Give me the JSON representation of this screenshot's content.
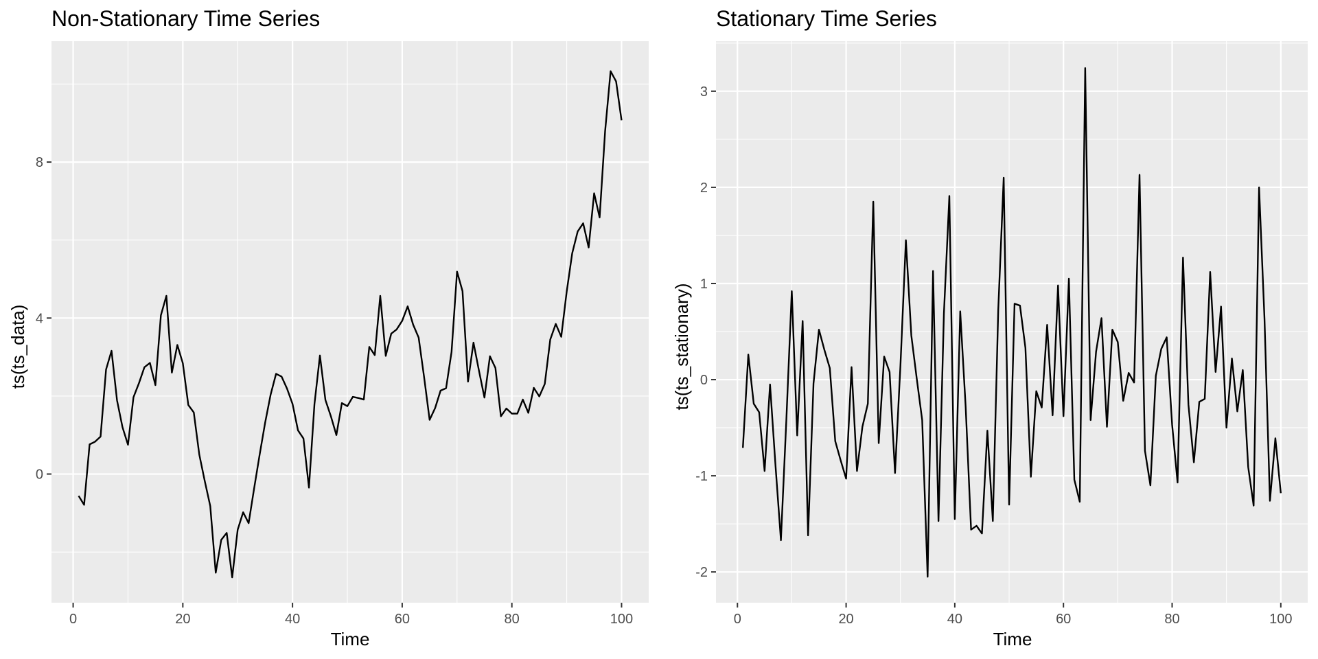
{
  "chart_data": [
    {
      "type": "line",
      "title": "Non-Stationary Time Series",
      "xlabel": "Time",
      "ylabel": "ts(ts_data)",
      "xlim": [
        -3.95,
        104.95
      ],
      "ylim": [
        -3.3,
        11.1
      ],
      "xticks": [
        0,
        20,
        40,
        60,
        80,
        100
      ],
      "xtick_labels": [
        "0",
        "20",
        "40",
        "60",
        "80",
        "100"
      ],
      "yticks": [
        0,
        4,
        8
      ],
      "ytick_labels": [
        "0",
        "4",
        "8"
      ],
      "grid": true,
      "x": [
        1,
        2,
        3,
        4,
        5,
        6,
        7,
        8,
        9,
        10,
        11,
        12,
        13,
        14,
        15,
        16,
        17,
        18,
        19,
        20,
        21,
        22,
        23,
        24,
        25,
        26,
        27,
        28,
        29,
        30,
        31,
        32,
        33,
        34,
        35,
        36,
        37,
        38,
        39,
        40,
        41,
        42,
        43,
        44,
        45,
        46,
        47,
        48,
        49,
        50,
        51,
        52,
        53,
        54,
        55,
        56,
        57,
        58,
        59,
        60,
        61,
        62,
        63,
        64,
        65,
        66,
        67,
        68,
        69,
        70,
        71,
        72,
        73,
        74,
        75,
        76,
        77,
        78,
        79,
        80,
        81,
        82,
        83,
        84,
        85,
        86,
        87,
        88,
        89,
        90,
        91,
        92,
        93,
        94,
        95,
        96,
        97,
        98,
        99,
        100
      ],
      "series": [
        {
          "values": [
            -0.56,
            -0.79,
            0.76,
            0.83,
            0.96,
            2.68,
            3.16,
            1.89,
            1.2,
            0.75,
            1.97,
            2.33,
            2.74,
            2.85,
            2.28,
            4.07,
            4.57,
            2.6,
            3.31,
            2.84,
            1.77,
            1.58,
            0.5,
            -0.18,
            -0.82,
            -2.53,
            -1.69,
            -1.51,
            -2.65,
            -1.43,
            -0.98,
            -1.26,
            -0.37,
            0.49,
            1.31,
            2.03,
            2.57,
            2.5,
            2.19,
            1.8,
            1.12,
            0.91,
            -0.35,
            1.79,
            3.04,
            1.9,
            1.48,
            1.0,
            1.82,
            1.74,
            1.98,
            1.95,
            1.91,
            3.26,
            3.05,
            4.57,
            3.03,
            3.6,
            3.71,
            3.93,
            4.3,
            3.83,
            3.5,
            2.48,
            1.39,
            1.69,
            2.14,
            2.2,
            3.13,
            5.19,
            4.69,
            2.37,
            3.37,
            2.65,
            1.96,
            3.02,
            2.72,
            1.48,
            1.68,
            1.55,
            1.55,
            1.91,
            1.57,
            2.21,
            1.99,
            2.31,
            3.45,
            3.85,
            3.52,
            4.68,
            5.66,
            6.22,
            6.43,
            5.81,
            7.2,
            6.58,
            8.79,
            10.33,
            10.07,
            9.07
          ]
        }
      ]
    },
    {
      "type": "line",
      "title": "Stationary Time Series",
      "xlabel": "Time",
      "ylabel": "ts(ts_stationary)",
      "xlim": [
        -3.95,
        104.95
      ],
      "ylim": [
        -2.32,
        3.52
      ],
      "xticks": [
        0,
        20,
        40,
        60,
        80,
        100
      ],
      "xtick_labels": [
        "0",
        "20",
        "40",
        "60",
        "80",
        "100"
      ],
      "yticks": [
        -2,
        -1,
        0,
        1,
        2,
        3
      ],
      "ytick_labels": [
        "-2",
        "-1",
        "0",
        "1",
        "2",
        "3"
      ],
      "grid": true,
      "x": [
        1,
        2,
        3,
        4,
        5,
        6,
        7,
        8,
        9,
        10,
        11,
        12,
        13,
        14,
        15,
        16,
        17,
        18,
        19,
        20,
        21,
        22,
        23,
        24,
        25,
        26,
        27,
        28,
        29,
        30,
        31,
        32,
        33,
        34,
        35,
        36,
        37,
        38,
        39,
        40,
        41,
        42,
        43,
        44,
        45,
        46,
        47,
        48,
        49,
        50,
        51,
        52,
        53,
        54,
        55,
        56,
        57,
        58,
        59,
        60,
        61,
        62,
        63,
        64,
        65,
        66,
        67,
        68,
        69,
        70,
        71,
        72,
        73,
        74,
        75,
        76,
        77,
        78,
        79,
        80,
        81,
        82,
        83,
        84,
        85,
        86,
        87,
        88,
        89,
        90,
        91,
        92,
        93,
        94,
        95,
        96,
        97,
        98,
        99,
        100
      ],
      "series": [
        {
          "values": [
            -0.71,
            0.26,
            -0.25,
            -0.34,
            -0.95,
            -0.05,
            -0.89,
            -1.67,
            -0.42,
            0.92,
            -0.58,
            0.61,
            -1.62,
            -0.04,
            0.52,
            0.31,
            0.12,
            -0.64,
            -0.84,
            -1.03,
            0.13,
            -0.95,
            -0.49,
            -0.25,
            1.85,
            -0.66,
            0.24,
            0.08,
            -0.97,
            0.15,
            1.45,
            0.46,
            0.01,
            -0.42,
            -2.05,
            1.13,
            -1.47,
            0.69,
            1.91,
            -1.45,
            0.71,
            -0.28,
            -1.56,
            -1.52,
            -1.6,
            -0.53,
            -1.47,
            0.73,
            2.1,
            -1.3,
            0.79,
            0.77,
            0.33,
            -1.01,
            -0.12,
            -0.29,
            0.57,
            -0.37,
            0.98,
            -0.38,
            1.05,
            -1.04,
            -1.27,
            3.24,
            -0.42,
            0.29,
            0.64,
            -0.49,
            0.52,
            0.39,
            -0.22,
            0.07,
            -0.03,
            2.13,
            -0.74,
            -1.1,
            0.04,
            0.32,
            0.44,
            -0.47,
            -1.07,
            1.27,
            -0.26,
            -0.86,
            -0.23,
            -0.2,
            1.12,
            0.08,
            0.76,
            -0.5,
            0.22,
            -0.33,
            0.1,
            -0.91,
            -1.31,
            2.0,
            0.63,
            -1.26,
            -0.61,
            -1.18
          ]
        }
      ]
    }
  ]
}
